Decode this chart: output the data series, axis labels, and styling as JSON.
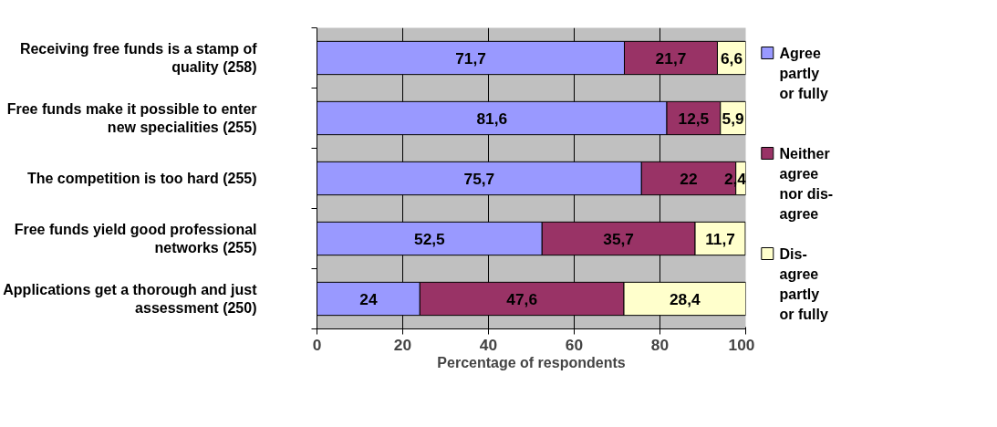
{
  "chart_data": {
    "type": "bar",
    "orientation": "horizontal",
    "stacked": true,
    "categories": [
      "Receiving free funds is a stamp of quality (258)",
      "Free funds make it possible to enter new specialities (255)",
      "The competition is too hard (255)",
      "Free funds yield good professional networks (255)",
      "Applications get a thorough and just assessment (250)"
    ],
    "series": [
      {
        "name": "Agree partly or fully",
        "color": "#9999ff",
        "values": [
          71.7,
          81.6,
          75.7,
          52.5,
          24
        ],
        "value_labels": [
          "71,7",
          "81,6",
          "75,7",
          "52,5",
          "24"
        ]
      },
      {
        "name": "Neither agree nor dis-agree",
        "color": "#993366",
        "values": [
          21.7,
          12.5,
          22,
          35.7,
          47.6
        ],
        "value_labels": [
          "21,7",
          "12,5",
          "22",
          "35,7",
          "47,6"
        ]
      },
      {
        "name": "Dis-agree partly or fully",
        "color": "#ffffcc",
        "values": [
          6.6,
          5.9,
          2.4,
          11.7,
          28.4
        ],
        "value_labels": [
          "6,6",
          "5,9",
          "2,4",
          "11,7",
          "28,4"
        ]
      }
    ],
    "xlabel": "Percentage of respondents",
    "xlim": [
      0,
      100
    ],
    "xticks": [
      0,
      20,
      40,
      60,
      80,
      100
    ],
    "grid": "x",
    "legend": "right"
  }
}
